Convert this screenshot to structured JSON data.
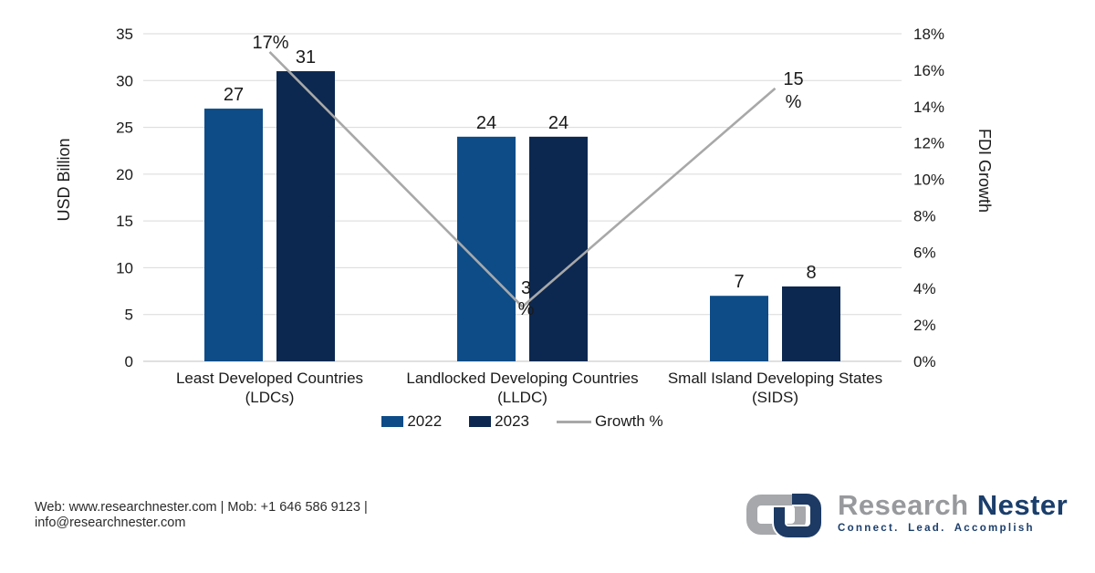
{
  "chart_data": {
    "type": "combo_bar_line",
    "categories": [
      {
        "key": "ldcs",
        "label_lines": [
          "Least Developed Countries",
          "(LDCs)"
        ]
      },
      {
        "key": "lldc",
        "label_lines": [
          "Landlocked Developing Countries",
          "(LLDC)"
        ]
      },
      {
        "key": "sids",
        "label_lines": [
          "Small Island Developing States",
          "(SIDS)"
        ]
      }
    ],
    "series": [
      {
        "name": "2022",
        "type": "bar",
        "axis": "left",
        "color": "#0E4C87",
        "values": [
          27,
          24,
          7
        ],
        "labels": [
          "27",
          "24",
          "7"
        ]
      },
      {
        "name": "2023",
        "type": "bar",
        "axis": "left",
        "color": "#0C2850",
        "values": [
          31,
          24,
          8
        ],
        "labels": [
          "31",
          "24",
          "8"
        ]
      },
      {
        "name": "Growth %",
        "type": "line",
        "axis": "right",
        "color": "#A8A8A8",
        "values": [
          17,
          3,
          15
        ],
        "point_label_lines": [
          [
            "17%"
          ],
          [
            "3",
            "%"
          ],
          [
            "15",
            "%"
          ]
        ]
      }
    ],
    "left_axis": {
      "title": "USD Billion",
      "min": 0,
      "max": 35,
      "step": 5,
      "ticks": [
        "0",
        "5",
        "10",
        "15",
        "20",
        "25",
        "30",
        "35"
      ]
    },
    "right_axis": {
      "title": "FDI Growth",
      "min": 0,
      "max": 18,
      "step": 2,
      "ticks": [
        "0%",
        "2%",
        "4%",
        "6%",
        "8%",
        "10%",
        "12%",
        "14%",
        "16%",
        "18%"
      ]
    },
    "grid": true,
    "legend_position": "bottom",
    "colors": {
      "grid": "#DADADA",
      "axis_line": "#C2C2C2",
      "text": "#1a1a1a"
    }
  },
  "footer": {
    "contact_line1": "Web: www.researchnester.com | Mob: +1 646 586 9123 |",
    "contact_line2": "info@researchnester.com",
    "logo": {
      "word1": "Research",
      "word2": "Nester",
      "tagline": "Connect. Lead. Accomplish",
      "gray": "#A6A8AB",
      "navy": "#1C3A64"
    }
  }
}
